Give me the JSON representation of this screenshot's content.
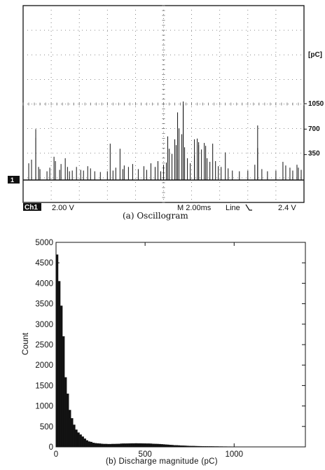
{
  "oscillogram": {
    "unit_label": "[pC]",
    "scale_labels": [
      "1050",
      "700",
      "350"
    ],
    "scale_values": [
      1050,
      700,
      350
    ],
    "channel_marker": "1",
    "status_bar": {
      "channel": "Ch1",
      "volts_per_div": "2.00 V",
      "timebase": "M 2.00ms",
      "trigger": "Line",
      "trigger_level": "2.4 V"
    },
    "caption": "(a) Oscillogram",
    "ylim_pC": [
      0,
      1400
    ],
    "pulses": [
      {
        "t": 0.02,
        "pC": 230
      },
      {
        "t": 0.03,
        "pC": 280
      },
      {
        "t": 0.045,
        "pC": 580
      },
      {
        "t": 0.055,
        "pC": 180
      },
      {
        "t": 0.06,
        "pC": 150
      },
      {
        "t": 0.085,
        "pC": 120
      },
      {
        "t": 0.095,
        "pC": 170
      },
      {
        "t": 0.11,
        "pC": 320
      },
      {
        "t": 0.115,
        "pC": 260
      },
      {
        "t": 0.13,
        "pC": 140
      },
      {
        "t": 0.135,
        "pC": 220
      },
      {
        "t": 0.15,
        "pC": 300
      },
      {
        "t": 0.158,
        "pC": 180
      },
      {
        "t": 0.165,
        "pC": 120
      },
      {
        "t": 0.175,
        "pC": 130
      },
      {
        "t": 0.19,
        "pC": 180
      },
      {
        "t": 0.205,
        "pC": 140
      },
      {
        "t": 0.215,
        "pC": 130
      },
      {
        "t": 0.23,
        "pC": 190
      },
      {
        "t": 0.24,
        "pC": 160
      },
      {
        "t": 0.255,
        "pC": 120
      },
      {
        "t": 0.275,
        "pC": 110
      },
      {
        "t": 0.3,
        "pC": 120
      },
      {
        "t": 0.32,
        "pC": 130
      },
      {
        "t": 0.33,
        "pC": 170
      },
      {
        "t": 0.345,
        "pC": 430
      },
      {
        "t": 0.355,
        "pC": 150
      },
      {
        "t": 0.36,
        "pC": 200
      },
      {
        "t": 0.375,
        "pC": 180
      },
      {
        "t": 0.39,
        "pC": 220
      },
      {
        "t": 0.41,
        "pC": 150
      },
      {
        "t": 0.43,
        "pC": 190
      },
      {
        "t": 0.44,
        "pC": 140
      },
      {
        "t": 0.455,
        "pC": 230
      },
      {
        "t": 0.47,
        "pC": 180
      },
      {
        "t": 0.48,
        "pC": 260
      },
      {
        "t": 0.49,
        "pC": 120
      },
      {
        "t": 0.5,
        "pC": 210
      },
      {
        "t": 0.51,
        "pC": 240
      },
      {
        "t": 0.52,
        "pC": 430
      },
      {
        "t": 0.53,
        "pC": 360
      },
      {
        "t": 0.54,
        "pC": 560
      },
      {
        "t": 0.545,
        "pC": 480
      },
      {
        "t": 0.55,
        "pC": 280
      },
      {
        "t": 0.555,
        "pC": 710
      },
      {
        "t": 0.565,
        "pC": 630
      },
      {
        "t": 0.57,
        "pC": 1040
      },
      {
        "t": 0.575,
        "pC": 450
      },
      {
        "t": 0.585,
        "pC": 300
      },
      {
        "t": 0.595,
        "pC": 230
      },
      {
        "t": 0.61,
        "pC": 340
      },
      {
        "t": 0.62,
        "pC": 570
      },
      {
        "t": 0.625,
        "pC": 480
      },
      {
        "t": 0.635,
        "pC": 420
      },
      {
        "t": 0.645,
        "pC": 510
      },
      {
        "t": 0.655,
        "pC": 300
      },
      {
        "t": 0.665,
        "pC": 250
      },
      {
        "t": 0.675,
        "pC": 500
      },
      {
        "t": 0.685,
        "pC": 260
      },
      {
        "t": 0.695,
        "pC": 190
      },
      {
        "t": 0.705,
        "pC": 180
      },
      {
        "t": 0.72,
        "pC": 380
      },
      {
        "t": 0.73,
        "pC": 160
      },
      {
        "t": 0.745,
        "pC": 130
      },
      {
        "t": 0.77,
        "pC": 120
      },
      {
        "t": 0.8,
        "pC": 130
      },
      {
        "t": 0.825,
        "pC": 210
      },
      {
        "t": 0.835,
        "pC": 440
      },
      {
        "t": 0.85,
        "pC": 150
      },
      {
        "t": 0.87,
        "pC": 120
      },
      {
        "t": 0.9,
        "pC": 130
      },
      {
        "t": 0.925,
        "pC": 250
      },
      {
        "t": 0.935,
        "pC": 200
      },
      {
        "t": 0.95,
        "pC": 170
      },
      {
        "t": 0.96,
        "pC": 130
      },
      {
        "t": 0.975,
        "pC": 210
      },
      {
        "t": 0.98,
        "pC": 170
      },
      {
        "t": 0.99,
        "pC": 140
      }
    ],
    "tall_pulses": [
      {
        "t": 0.045,
        "pC": 700
      },
      {
        "t": 0.31,
        "pC": 500
      },
      {
        "t": 0.515,
        "pC": 600
      },
      {
        "t": 0.55,
        "pC": 930
      },
      {
        "t": 0.57,
        "pC": 1080
      },
      {
        "t": 0.61,
        "pC": 560
      },
      {
        "t": 0.625,
        "pC": 520
      },
      {
        "t": 0.65,
        "pC": 470
      },
      {
        "t": 0.835,
        "pC": 750
      }
    ]
  },
  "chart_data": {
    "type": "bar",
    "title": "",
    "caption": "(b) Discharge magnitude (pC)",
    "xlabel": "Discharge magnitude (pC)",
    "ylabel": "Count",
    "xlim": [
      0,
      1400
    ],
    "ylim": [
      0,
      5000
    ],
    "bin_width": 12,
    "xticks": [
      0,
      500,
      1000
    ],
    "xtick_labels": [
      "0",
      "500",
      "1000"
    ],
    "yticks": [
      0,
      500,
      1000,
      1500,
      2000,
      2500,
      3000,
      3500,
      4000,
      4500,
      5000
    ],
    "ytick_labels": [
      "0",
      "500",
      "1000",
      "1500",
      "2000",
      "2500",
      "3000",
      "3500",
      "4000",
      "4500",
      "5000"
    ],
    "categories": [
      0,
      12,
      24,
      36,
      48,
      60,
      72,
      84,
      96,
      108,
      120,
      132,
      144,
      156,
      168,
      180,
      192,
      204,
      216,
      228,
      240,
      252,
      264,
      276,
      288,
      300,
      312,
      324,
      336,
      348,
      360,
      372,
      384,
      396,
      408,
      420,
      432,
      444,
      456,
      468,
      480,
      492,
      504,
      516,
      528,
      540,
      552,
      564,
      576,
      588,
      600,
      612,
      624,
      636,
      648,
      660,
      672,
      684,
      696,
      708,
      720,
      732,
      744,
      756,
      768,
      780,
      792,
      804,
      816,
      828,
      840,
      852,
      864,
      876,
      888,
      900,
      912,
      924,
      936,
      948,
      960,
      972,
      984,
      996,
      1008,
      1020,
      1032,
      1044,
      1056,
      1068,
      1080,
      1092,
      1104,
      1116,
      1128
    ],
    "values": [
      4700,
      4050,
      3450,
      2700,
      1700,
      1300,
      900,
      700,
      540,
      420,
      350,
      300,
      250,
      200,
      160,
      130,
      120,
      100,
      90,
      85,
      80,
      75,
      70,
      70,
      68,
      68,
      70,
      70,
      72,
      74,
      78,
      80,
      80,
      82,
      84,
      85,
      85,
      86,
      85,
      85,
      84,
      82,
      80,
      80,
      78,
      75,
      72,
      70,
      68,
      64,
      60,
      56,
      52,
      48,
      44,
      40,
      38,
      35,
      32,
      30,
      27,
      25,
      23,
      21,
      20,
      18,
      17,
      16,
      15,
      14,
      13,
      12,
      12,
      11,
      10,
      10,
      9,
      9,
      8,
      8,
      7,
      7,
      6,
      6,
      5,
      5,
      5,
      4,
      4,
      4,
      3,
      3,
      3,
      2,
      2
    ]
  }
}
